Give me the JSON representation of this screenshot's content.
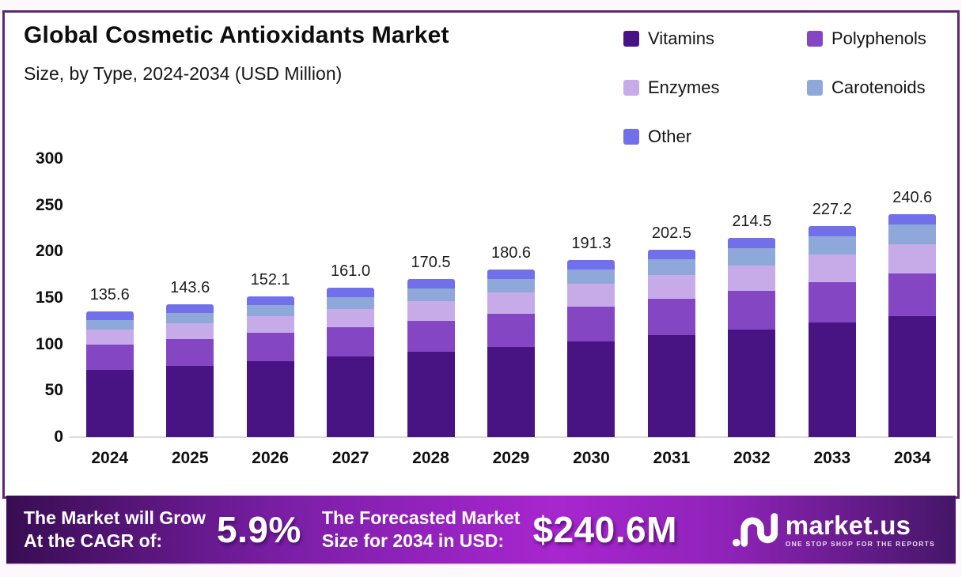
{
  "header": {
    "title": "Global Cosmetic Antioxidants Market",
    "subtitle": "Size, by Type, 2024-2034 (USD Million)"
  },
  "chart_data": {
    "type": "bar",
    "stacked": true,
    "title": "Global Cosmetic Antioxidants Market Size, by Type, 2024-2034 (USD Million)",
    "categories": [
      "2024",
      "2025",
      "2026",
      "2027",
      "2028",
      "2029",
      "2030",
      "2031",
      "2032",
      "2033",
      "2034"
    ],
    "totals": [
      135.6,
      143.6,
      152.1,
      161.0,
      170.5,
      180.6,
      191.3,
      202.5,
      214.5,
      227.2,
      240.6
    ],
    "series": [
      {
        "name": "Vitamins",
        "color": "#481382",
        "values": [
          72.5,
          76.9,
          81.8,
          86.6,
          91.8,
          97.5,
          103.5,
          109.6,
          116.2,
          123.2,
          130.5
        ]
      },
      {
        "name": "Polyphenols",
        "color": "#8546c4",
        "values": [
          27.3,
          28.8,
          30.3,
          32.0,
          33.7,
          35.5,
          37.4,
          39.4,
          41.5,
          43.8,
          46.1
        ]
      },
      {
        "name": "Enzymes",
        "color": "#c7abe8",
        "values": [
          16.2,
          17.3,
          18.5,
          19.8,
          21.2,
          22.6,
          24.2,
          25.9,
          27.7,
          29.6,
          31.6
        ]
      },
      {
        "name": "Carotenoids",
        "color": "#8ea8d9",
        "values": [
          10.2,
          11.0,
          11.8,
          12.7,
          13.7,
          14.7,
          15.8,
          17.0,
          18.3,
          19.7,
          21.3
        ]
      },
      {
        "name": "Other",
        "color": "#7170ea",
        "values": [
          9.4,
          9.6,
          9.7,
          9.9,
          10.1,
          10.3,
          10.4,
          10.6,
          10.8,
          10.9,
          11.1
        ]
      }
    ],
    "xlabel": "",
    "ylabel": "",
    "ylim": [
      0,
      300
    ],
    "yticks": [
      0,
      50,
      100,
      150,
      200,
      250,
      300
    ],
    "grid": false,
    "legend_position": "top-right"
  },
  "footer": {
    "cagr_label_line1": "The Market will Grow",
    "cagr_label_line2": "At the CAGR of:",
    "cagr_value": "5.9%",
    "forecast_label_line1": "The Forecasted Market",
    "forecast_label_line2": "Size for 2034 in USD:",
    "forecast_value": "$240.6M",
    "brand": {
      "name": "market.us",
      "tagline": "ONE STOP SHOP FOR THE REPORTS"
    }
  },
  "colors": {
    "border": "#5b2a6f",
    "banner_gradient_start": "#380d52",
    "banner_gradient_mid": "#a826cf",
    "banner_gradient_end": "#451668",
    "axis_line": "#dcdcdc",
    "background": "#fdf8fc"
  }
}
